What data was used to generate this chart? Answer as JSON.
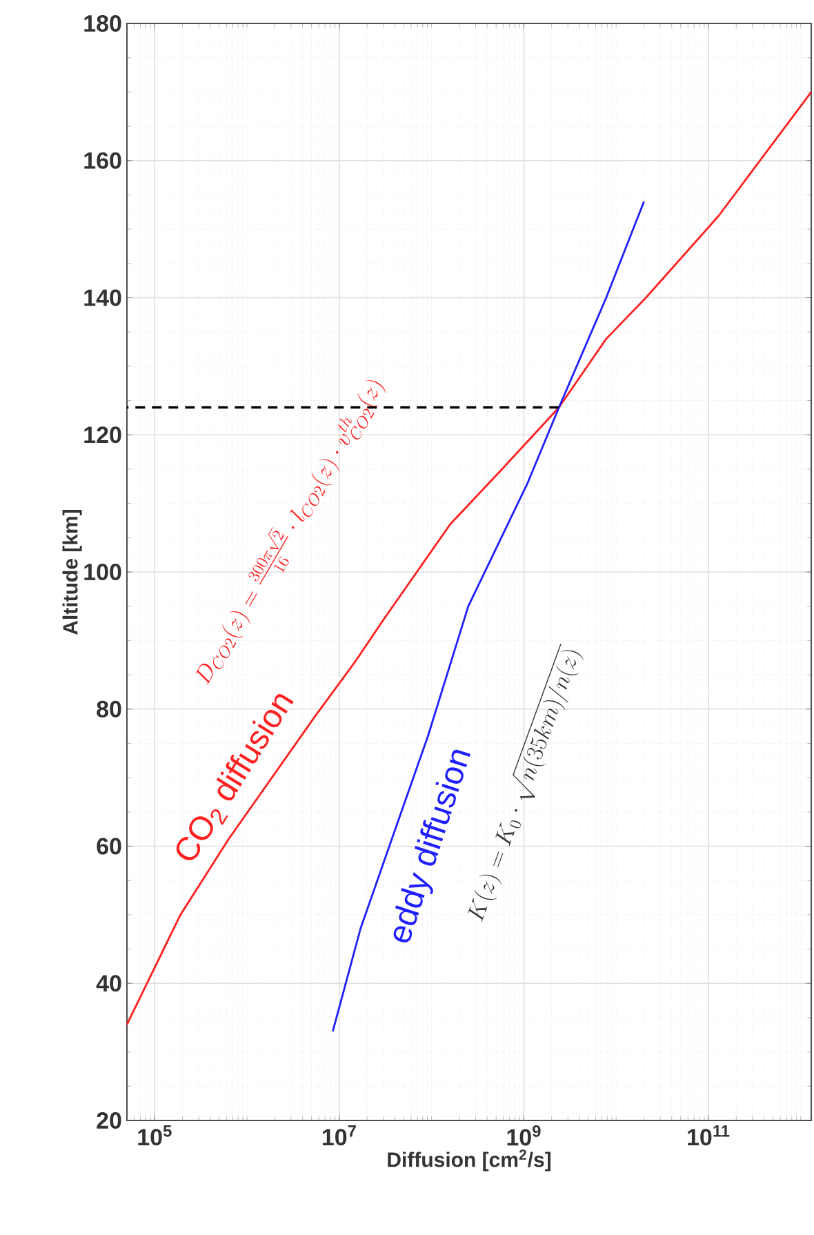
{
  "chart_data": {
    "type": "line",
    "xlabel": "Diffusion [cm$^{2}$/s]",
    "ylabel": "Altitude [km]",
    "log": "x",
    "xlim": [
      50000.0,
      1300000000000.0
    ],
    "ylim": [
      20,
      180
    ],
    "xticks": [
      {
        "value": 100000.0,
        "label": "10$^{5}$"
      },
      {
        "value": 10000000.0,
        "label": "10$^{7}$"
      },
      {
        "value": 1000000000.0,
        "label": "10$^{9}$"
      },
      {
        "value": 100000000000.0,
        "label": "10$^{11}$"
      }
    ],
    "yticks": [
      20,
      40,
      60,
      80,
      100,
      120,
      140,
      160,
      180
    ],
    "grid": true,
    "series": [
      {
        "name": "CO$_{2}$ diffusion",
        "color": "#ff2020",
        "x": [
          50000.0,
          190000.0,
          630000.0,
          5500000.0,
          15000000.0,
          30000000.0,
          160000000.0,
          580000000.0,
          2400000000.0,
          7800000000.0,
          21000000000.0,
          130000000000.0,
          1300000000000.0
        ],
        "values": [
          34,
          50,
          61,
          79,
          87,
          93,
          107,
          115,
          124,
          134,
          140,
          152,
          170
        ]
      },
      {
        "name": "eddy diffusion",
        "color": "#2020ff",
        "x": [
          8500000.0,
          17000000.0,
          37000000.0,
          91000000.0,
          250000000.0,
          1100000000.0,
          2400000000.0,
          7800000000.0,
          20000000000.0
        ],
        "values": [
          33,
          48,
          61,
          76,
          95,
          113,
          124,
          140,
          154
        ]
      },
      {
        "type": "line",
        "line_style": "dashed",
        "color": "#000000",
        "x": [
          2400000000.0,
          50000.0
        ],
        "values": [
          124,
          124
        ]
      }
    ],
    "annotations": [
      "D_{CO2}(z) = \\frac{300\\pi\\sqrt{2}}{16}\\cdot l_{CO2}(z)\\cdot v_{CO2}^{th}(z)",
      "K(z) = K_0\\cdot\\sqrt{n(35km)/n(z)}"
    ]
  }
}
